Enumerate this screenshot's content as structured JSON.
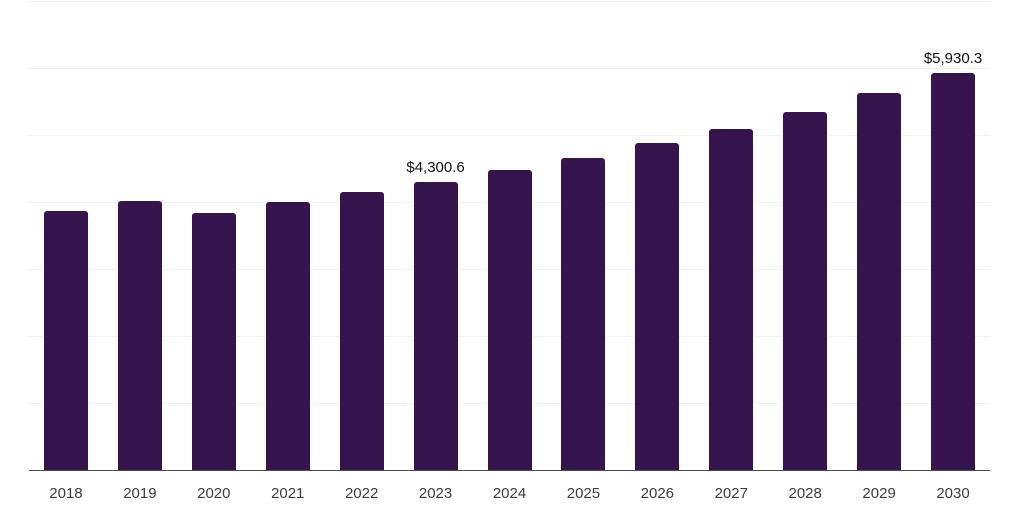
{
  "chart": {
    "background_color": "#ffffff",
    "bar_color": "#36154e",
    "axis_line_color": "#4d4d4d",
    "gridline_color": "#f2f2f2",
    "data_label_color": "#121212",
    "tick_label_color": "#3d3d3d"
  },
  "chart_data": {
    "type": "bar",
    "title": "",
    "xlabel": "",
    "ylabel": "",
    "ylim": [
      0,
      7000
    ],
    "gridline_step": 1000,
    "grid": true,
    "legend": "none",
    "categories": [
      "2018",
      "2019",
      "2020",
      "2021",
      "2022",
      "2023",
      "2024",
      "2025",
      "2026",
      "2027",
      "2028",
      "2029",
      "2030"
    ],
    "values": [
      3865,
      4020,
      3830,
      4000,
      4145,
      4300.6,
      4480,
      4660,
      4885,
      5090,
      5350,
      5620,
      5930.3
    ],
    "data_labels": {
      "2023": "$4,300.6",
      "2030": "$5,930.3"
    }
  }
}
